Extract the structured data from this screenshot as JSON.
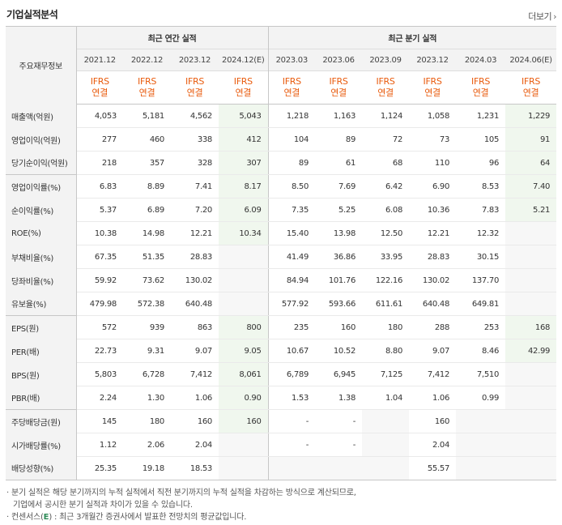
{
  "title": "기업실적분석",
  "more_label": "더보기",
  "corner_label": "주요재무정보",
  "group_annual": "최근 연간 실적",
  "group_quarterly": "최근 분기 실적",
  "periods": [
    "2021.12",
    "2022.12",
    "2023.12",
    "2024.12(E)",
    "2023.03",
    "2023.06",
    "2023.09",
    "2023.12",
    "2024.03",
    "2024.06(E)"
  ],
  "ifrs": [
    "IFRS",
    "연결"
  ],
  "rows": [
    {
      "label": "매출액(억원)",
      "values": [
        "4,053",
        "5,181",
        "4,562",
        "5,043",
        "1,218",
        "1,163",
        "1,124",
        "1,058",
        "1,231",
        "1,229"
      ]
    },
    {
      "label": "영업이익(억원)",
      "values": [
        "277",
        "460",
        "338",
        "412",
        "104",
        "89",
        "72",
        "73",
        "105",
        "91"
      ]
    },
    {
      "label": "당기순이익(억원)",
      "values": [
        "218",
        "357",
        "328",
        "307",
        "89",
        "61",
        "68",
        "110",
        "96",
        "64"
      ]
    },
    {
      "label": "영업이익률(%)",
      "values": [
        "6.83",
        "8.89",
        "7.41",
        "8.17",
        "8.50",
        "7.69",
        "6.42",
        "6.90",
        "8.53",
        "7.40"
      ]
    },
    {
      "label": "순이익률(%)",
      "values": [
        "5.37",
        "6.89",
        "7.20",
        "6.09",
        "7.35",
        "5.25",
        "6.08",
        "10.36",
        "7.83",
        "5.21"
      ]
    },
    {
      "label": "ROE(%)",
      "values": [
        "10.38",
        "14.98",
        "12.21",
        "10.34",
        "15.40",
        "13.98",
        "12.50",
        "12.21",
        "12.32",
        ""
      ]
    },
    {
      "label": "부채비율(%)",
      "values": [
        "67.35",
        "51.35",
        "28.83",
        "",
        "41.49",
        "36.86",
        "33.95",
        "28.83",
        "30.15",
        ""
      ]
    },
    {
      "label": "당좌비율(%)",
      "values": [
        "59.92",
        "73.62",
        "130.02",
        "",
        "84.94",
        "101.76",
        "122.16",
        "130.02",
        "137.70",
        ""
      ]
    },
    {
      "label": "유보율(%)",
      "values": [
        "479.98",
        "572.38",
        "640.48",
        "",
        "577.92",
        "593.66",
        "611.61",
        "640.48",
        "649.81",
        ""
      ]
    },
    {
      "label": "EPS(원)",
      "values": [
        "572",
        "939",
        "863",
        "800",
        "235",
        "160",
        "180",
        "288",
        "253",
        "168"
      ]
    },
    {
      "label": "PER(배)",
      "values": [
        "22.73",
        "9.31",
        "9.07",
        "9.05",
        "10.67",
        "10.52",
        "8.80",
        "9.07",
        "8.46",
        "42.99"
      ]
    },
    {
      "label": "BPS(원)",
      "values": [
        "5,803",
        "6,728",
        "7,412",
        "8,061",
        "6,789",
        "6,945",
        "7,125",
        "7,412",
        "7,510",
        ""
      ]
    },
    {
      "label": "PBR(배)",
      "values": [
        "2.24",
        "1.30",
        "1.06",
        "0.90",
        "1.53",
        "1.38",
        "1.04",
        "1.06",
        "0.99",
        ""
      ]
    },
    {
      "label": "주당배당금(원)",
      "values": [
        "145",
        "180",
        "160",
        "160",
        "-",
        "-",
        "",
        "160",
        "",
        ""
      ]
    },
    {
      "label": "시가배당률(%)",
      "values": [
        "1.12",
        "2.06",
        "2.04",
        "",
        "-",
        "-",
        "",
        "2.04",
        "",
        ""
      ]
    },
    {
      "label": "배당성향(%)",
      "values": [
        "25.35",
        "19.18",
        "18.53",
        "",
        "",
        "",
        "",
        "55.57",
        "",
        ""
      ]
    }
  ],
  "notes": {
    "line1": "· 분기 실적은 해당 분기까지의 누적 실적에서 직전 분기까지의 누적 실적을 차감하는 방식으로 계산되므로,",
    "line2": "  기업에서 공시한 분기 실적과 차이가 있을 수 있습니다.",
    "line3_prefix": "· 컨센서스(",
    "line3_e": "E",
    "line3_suffix": ") : 최근 3개월간 증권사에서 발표한 전망치의 평균값입니다."
  }
}
